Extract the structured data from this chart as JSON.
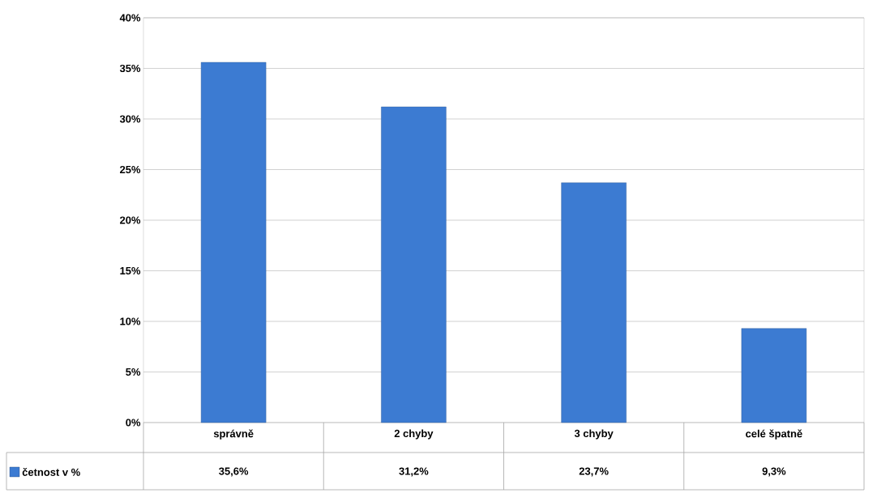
{
  "chart_data": {
    "type": "bar",
    "categories": [
      "správně",
      "2 chyby",
      "3 chyby",
      "celé špatně"
    ],
    "series": [
      {
        "name": "četnost v %",
        "color": "#3c7bd2",
        "values": [
          35.6,
          31.2,
          23.7,
          9.3
        ],
        "value_labels": [
          "35,6%",
          "31,2%",
          "23,7%",
          "9,3%"
        ]
      }
    ],
    "ylim": [
      0,
      40
    ],
    "yticks": [
      {
        "value": 0,
        "label": "0%"
      },
      {
        "value": 5,
        "label": "5%"
      },
      {
        "value": 10,
        "label": "10%"
      },
      {
        "value": 15,
        "label": "15%"
      },
      {
        "value": 20,
        "label": "20%"
      },
      {
        "value": 25,
        "label": "25%"
      },
      {
        "value": 30,
        "label": "30%"
      },
      {
        "value": 35,
        "label": "35%"
      },
      {
        "value": 40,
        "label": "40%"
      }
    ],
    "grid": "y",
    "legend": "bottom left"
  }
}
